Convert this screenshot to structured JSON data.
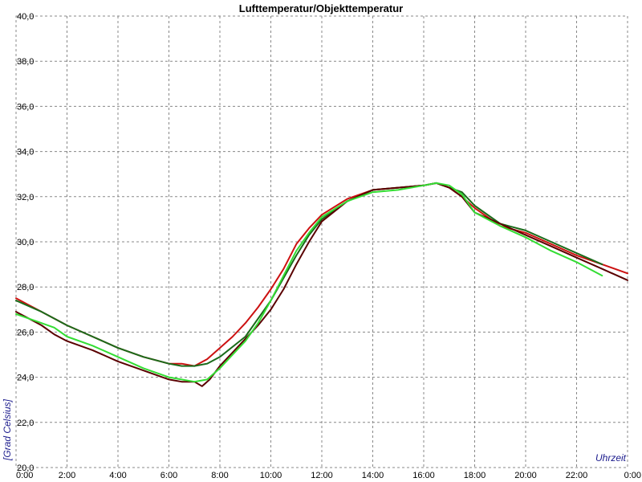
{
  "chart_data": {
    "type": "line",
    "title": "Lufttemperatur/Objekttemperatur",
    "xlabel": "Uhrzeit",
    "ylabel": "[Grad Celsius]",
    "xlim": [
      0,
      24
    ],
    "ylim": [
      20,
      40
    ],
    "x_ticks": [
      "0:00",
      "2:00",
      "4:00",
      "6:00",
      "8:00",
      "10:00",
      "12:00",
      "14:00",
      "16:00",
      "18:00",
      "20:00",
      "22:00",
      "0:00"
    ],
    "y_ticks": [
      "20,0",
      "22,0",
      "24,0",
      "26,0",
      "28,0",
      "30,0",
      "32,0",
      "34,0",
      "36,0",
      "38,0",
      "40,0"
    ],
    "grid": true,
    "series": [
      {
        "color": "#cc1111",
        "x": [
          0,
          0.5,
          1,
          1.5,
          2,
          3,
          4,
          5,
          6,
          6.5,
          7,
          7.5,
          8,
          8.5,
          9,
          9.5,
          10,
          10.5,
          11,
          11.5,
          12,
          13,
          14,
          15,
          16,
          16.5,
          17,
          17.5,
          18,
          19,
          20,
          21,
          22,
          23,
          24
        ],
        "y": [
          27.5,
          27.2,
          26.9,
          26.6,
          26.3,
          25.8,
          25.3,
          24.9,
          24.6,
          24.6,
          24.5,
          24.8,
          25.3,
          25.8,
          26.4,
          27.1,
          27.9,
          28.8,
          29.9,
          30.6,
          31.2,
          31.9,
          32.3,
          32.4,
          32.5,
          32.6,
          32.4,
          32.0,
          31.5,
          30.7,
          30.4,
          29.9,
          29.4,
          29.0,
          28.6
        ]
      },
      {
        "color": "#1a6b1a",
        "x": [
          0,
          1,
          2,
          3,
          4,
          5,
          6,
          6.5,
          7,
          7.5,
          8,
          9,
          10,
          11,
          11.5,
          12,
          13,
          14,
          15,
          16,
          16.5,
          17,
          17.5,
          18,
          19,
          20,
          21,
          22,
          23
        ],
        "y": [
          27.4,
          26.9,
          26.3,
          25.8,
          25.3,
          24.9,
          24.6,
          24.5,
          24.5,
          24.6,
          24.9,
          25.8,
          27.4,
          29.4,
          30.3,
          31.0,
          31.8,
          32.3,
          32.4,
          32.5,
          32.6,
          32.4,
          32.2,
          31.6,
          30.8,
          30.5,
          30.0,
          29.5,
          29.0
        ]
      },
      {
        "color": "#5a0000",
        "x": [
          0,
          0.5,
          1,
          1.5,
          2,
          3,
          4,
          5,
          6,
          6.5,
          7,
          7.3,
          7.6,
          8,
          8.5,
          9,
          9.5,
          10,
          10.5,
          11,
          11.5,
          12,
          13,
          14,
          15,
          16,
          16.5,
          17,
          17.5,
          18,
          19,
          20,
          21,
          22,
          23,
          24
        ],
        "y": [
          26.9,
          26.6,
          26.3,
          25.9,
          25.6,
          25.2,
          24.7,
          24.3,
          23.9,
          23.8,
          23.8,
          23.6,
          23.9,
          24.5,
          25.1,
          25.7,
          26.3,
          27.0,
          27.9,
          29.0,
          30.0,
          30.9,
          31.8,
          32.3,
          32.4,
          32.5,
          32.6,
          32.4,
          32.0,
          31.3,
          30.8,
          30.3,
          29.8,
          29.3,
          28.8,
          28.3
        ]
      },
      {
        "color": "#33dd33",
        "x": [
          0,
          1,
          1.5,
          2,
          3,
          4,
          5,
          6,
          6.5,
          7,
          7.5,
          8,
          8.5,
          9,
          9.5,
          10,
          10.5,
          11,
          11.5,
          12,
          13,
          14,
          15,
          16,
          16.5,
          17,
          17.5,
          18,
          19,
          20,
          21,
          22,
          23
        ],
        "y": [
          26.8,
          26.4,
          26.2,
          25.8,
          25.4,
          24.9,
          24.4,
          24.0,
          23.9,
          23.8,
          23.9,
          24.4,
          25.0,
          25.6,
          26.4,
          27.4,
          28.5,
          29.6,
          30.4,
          31.1,
          31.8,
          32.2,
          32.3,
          32.5,
          32.6,
          32.5,
          32.1,
          31.3,
          30.7,
          30.2,
          29.6,
          29.1,
          28.5
        ]
      }
    ]
  }
}
